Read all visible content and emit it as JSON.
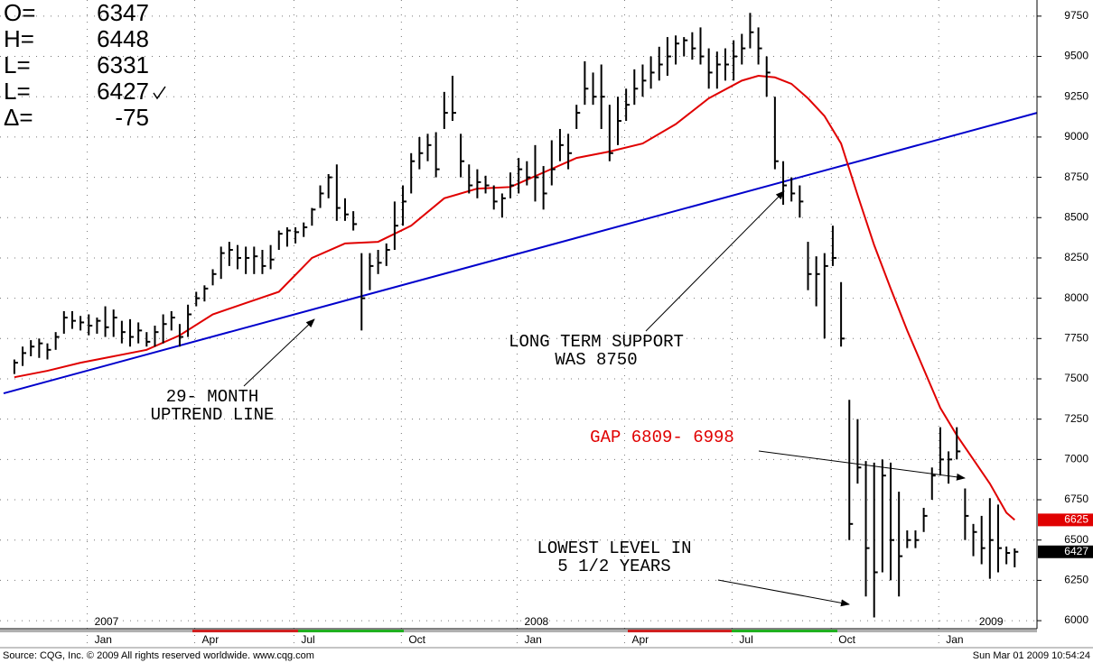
{
  "chart_data": {
    "type": "ohlc",
    "categories": [
      null,
      null,
      null,
      null,
      null,
      null,
      null,
      null,
      null,
      null,
      null,
      "Jan",
      null,
      null,
      null,
      null,
      null,
      null,
      null,
      null,
      null,
      null,
      null,
      null,
      "Apr",
      null,
      null,
      null,
      null,
      null,
      null,
      null,
      null,
      null,
      null,
      null,
      "Jul",
      null,
      null,
      null,
      null,
      null,
      null,
      null,
      null,
      null,
      null,
      null,
      null,
      "Oct",
      null,
      null,
      null,
      null,
      null,
      null,
      null,
      null,
      null,
      null,
      null,
      null,
      null,
      "Jan",
      null,
      null,
      null,
      null,
      null,
      null,
      null,
      null,
      null,
      null,
      null,
      null,
      "Apr",
      null,
      null,
      null,
      null,
      null,
      null,
      null,
      null,
      null,
      null,
      null,
      null,
      "Jul",
      null,
      null,
      null,
      null,
      null,
      null,
      null,
      null,
      null,
      null,
      null,
      "Oct",
      null,
      null,
      null,
      null,
      null,
      null,
      null,
      null,
      null,
      null,
      null,
      null,
      "Jan",
      null,
      null,
      null,
      null,
      null,
      null,
      null
    ],
    "years": [
      null,
      null,
      null,
      null,
      null,
      null,
      null,
      null,
      null,
      null,
      null,
      "2007",
      null,
      null,
      null,
      null,
      null,
      null,
      null,
      null,
      null,
      null,
      null,
      null,
      null,
      null,
      null,
      null,
      null,
      null,
      null,
      null,
      null,
      null,
      null,
      null,
      null,
      null,
      null,
      null,
      null,
      null,
      null,
      null,
      null,
      null,
      null,
      null,
      null,
      null,
      null,
      null,
      null,
      null,
      null,
      null,
      null,
      null,
      null,
      null,
      null,
      null,
      null,
      "2008",
      null,
      null,
      null,
      null,
      null,
      null,
      null,
      null,
      null,
      null,
      null,
      null,
      null,
      null,
      null,
      null,
      null,
      null,
      null,
      null,
      null,
      null,
      null,
      null,
      null,
      null,
      null,
      null,
      null,
      null,
      null,
      null,
      null,
      null,
      null,
      null,
      null,
      null,
      null,
      null,
      null,
      null,
      null,
      null,
      null,
      null,
      null,
      null,
      null,
      null,
      null,
      null,
      null,
      null,
      "2009",
      null,
      null,
      null,
      null,
      null,
      null,
      null
    ],
    "high": [
      7620,
      7700,
      7740,
      7750,
      7720,
      7790,
      7920,
      7920,
      7890,
      7900,
      7880,
      7950,
      7930,
      7860,
      7870,
      7850,
      7790,
      7830,
      7900,
      7920,
      7840,
      7960,
      8040,
      8080,
      8180,
      8320,
      8350,
      8330,
      8320,
      8320,
      8300,
      8330,
      8420,
      8440,
      8440,
      8470,
      8560,
      8700,
      8770,
      8830,
      8620,
      8540,
      8280,
      8280,
      8300,
      8340,
      8600,
      8700,
      8900,
      9000,
      9020,
      9030,
      9280,
      9380,
      9020,
      8830,
      8800,
      8760,
      8700,
      8650,
      8780,
      8870,
      8850,
      8950,
      8820,
      8980,
      9050,
      9020,
      9200,
      9470,
      9400,
      9450,
      9200,
      9250,
      9300,
      9420,
      9450,
      9500,
      9560,
      9620,
      9630,
      9620,
      9650,
      9680,
      9550,
      9530,
      9550,
      9600,
      9640,
      9770,
      9680,
      9500,
      9250,
      8850,
      8750,
      8700,
      8350,
      8260,
      8280,
      8450,
      8100,
      7370,
      7250,
      6990,
      6980,
      7000,
      6980,
      6800,
      6560,
      6560,
      6700,
      6950,
      7200,
      7050,
      7200,
      6820,
      6600,
      6650,
      6760,
      6720,
      6460,
      6448
    ],
    "low": [
      7530,
      7580,
      7640,
      7630,
      7620,
      7680,
      7780,
      7810,
      7800,
      7770,
      7780,
      7760,
      7760,
      7720,
      7700,
      7720,
      7700,
      7700,
      7720,
      7800,
      7700,
      7760,
      7950,
      7980,
      8080,
      8120,
      8200,
      8180,
      8150,
      8150,
      8150,
      8180,
      8300,
      8320,
      8340,
      8380,
      8450,
      8560,
      8620,
      8480,
      8480,
      8420,
      7800,
      8050,
      8150,
      8200,
      8300,
      8450,
      8650,
      8800,
      8850,
      8750,
      9050,
      9100,
      8750,
      8650,
      8620,
      8650,
      8550,
      8500,
      8620,
      8650,
      8700,
      8600,
      8550,
      8700,
      8850,
      8800,
      9050,
      9200,
      9200,
      9050,
      8850,
      8950,
      9100,
      9200,
      9250,
      9300,
      9350,
      9380,
      9450,
      9500,
      9480,
      9450,
      9300,
      9300,
      9350,
      9350,
      9450,
      9550,
      9450,
      9250,
      8800,
      8580,
      8600,
      8500,
      8050,
      7950,
      7750,
      8200,
      7700,
      6500,
      6850,
      6150,
      6020,
      6300,
      6250,
      6150,
      6450,
      6450,
      6550,
      6750,
      6900,
      6850,
      7000,
      6500,
      6400,
      6350,
      6260,
      6300,
      6350,
      6331
    ],
    "close": [
      7600,
      7660,
      7700,
      7720,
      7680,
      7760,
      7880,
      7860,
      7850,
      7830,
      7860,
      7820,
      7880,
      7790,
      7760,
      7800,
      7730,
      7790,
      7840,
      7880,
      7760,
      7900,
      8000,
      8060,
      8150,
      8280,
      8300,
      8250,
      8250,
      8260,
      8200,
      8240,
      8400,
      8420,
      8410,
      8440,
      8550,
      8650,
      8750,
      8560,
      8520,
      8460,
      8000,
      8200,
      8220,
      8300,
      8450,
      8600,
      8850,
      8900,
      8950,
      8800,
      9150,
      9150,
      8850,
      8700,
      8720,
      8700,
      8600,
      8620,
      8700,
      8800,
      8750,
      8750,
      8650,
      8800,
      8950,
      8900,
      9150,
      9300,
      9250,
      9250,
      8900,
      9100,
      9200,
      9300,
      9350,
      9400,
      9450,
      9500,
      9580,
      9600,
      9550,
      9500,
      9400,
      9450,
      9450,
      9500,
      9550,
      9650,
      9550,
      9400,
      8850,
      8700,
      8650,
      8600,
      8150,
      8150,
      8200,
      8250,
      7750,
      6600,
      6950,
      6450,
      6300,
      6900,
      6500,
      6400,
      6500,
      6500,
      6650,
      6900,
      7000,
      7000,
      7050,
      6650,
      6550,
      6450,
      6500,
      6450,
      6420,
      6427
    ],
    "color": "#000000",
    "moving_average": {
      "color": "#e00000",
      "x": [
        0,
        4,
        8,
        12,
        16,
        20,
        24,
        28,
        32,
        36,
        40,
        44,
        48,
        52,
        56,
        60,
        64,
        68,
        72,
        76,
        80,
        84,
        88,
        90,
        92,
        94,
        96,
        98,
        100,
        102,
        104,
        106,
        108,
        110,
        112,
        114,
        116,
        118,
        120,
        121
      ],
      "values": [
        7510,
        7550,
        7600,
        7640,
        7680,
        7770,
        7900,
        7970,
        8040,
        8250,
        8340,
        8350,
        8450,
        8620,
        8680,
        8690,
        8780,
        8870,
        8910,
        8960,
        9080,
        9240,
        9350,
        9380,
        9370,
        9330,
        9240,
        9130,
        8960,
        8640,
        8330,
        8060,
        7800,
        7560,
        7320,
        7150,
        7000,
        6850,
        6670,
        6625
      ]
    },
    "trendline": {
      "color": "#0000cc",
      "x": [
        -1.3,
        123.7
      ],
      "values": [
        7410,
        9150
      ]
    },
    "xlim": [
      -1.3,
      123.7
    ],
    "ylim": [
      5950,
      9850
    ],
    "yticks": [
      6000,
      6250,
      6500,
      6750,
      7000,
      7250,
      7500,
      7750,
      8000,
      8250,
      8500,
      8750,
      9000,
      9250,
      9500,
      9750
    ],
    "grid": true,
    "annotations": [
      {
        "lines": [
          "29- MONTH",
          "UPTREND LINE"
        ],
        "color": "#000000"
      },
      {
        "lines": [
          "LONG TERM SUPPORT",
          "WAS 8750"
        ],
        "color": "#000000"
      },
      {
        "lines": [
          "GAP 6809- 6998"
        ],
        "color": "#e00000"
      },
      {
        "lines": [
          "LOWEST LEVEL IN",
          "5 1/2 YEARS"
        ],
        "color": "#000000"
      }
    ]
  },
  "header": {
    "rows": [
      {
        "label": "O=",
        "value": 6347
      },
      {
        "label": "H=",
        "value": 6448
      },
      {
        "label": "L=",
        "value": 6331
      },
      {
        "label": "L=",
        "value": 6427
      },
      {
        "label": "Δ=",
        "value": -75
      }
    ]
  },
  "footer": {
    "source": "Source: CQG, Inc. © 2009 All rights reserved worldwide. www.cqg.com",
    "timestamp": "Sun Mar 01 2009 10:54:24"
  }
}
